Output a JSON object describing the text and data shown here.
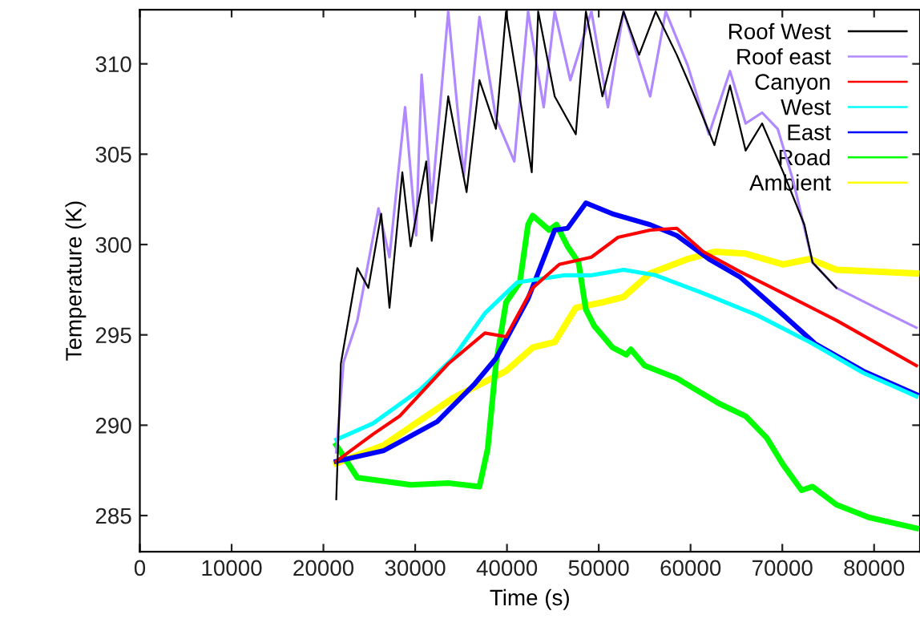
{
  "chart_data": {
    "type": "line",
    "xlabel": "Time (s)",
    "ylabel": "Temperature (K)",
    "xlim": [
      0,
      85000
    ],
    "xticks": [
      0,
      10000,
      20000,
      30000,
      40000,
      50000,
      60000,
      70000,
      80000
    ],
    "ylim": [
      283,
      313
    ],
    "yticks": [
      285,
      290,
      295,
      300,
      305,
      310
    ],
    "grid": false,
    "legend": "top right",
    "line_style": "solid",
    "marker": "none",
    "series": [
      {
        "name": "Roof West",
        "color": "#000000",
        "x": [
          21400,
          21900,
          23700,
          24900,
          26300,
          27200,
          28600,
          29500,
          31200,
          31800,
          33600,
          35600,
          37000,
          38800,
          39900,
          41100,
          42700,
          43400,
          45200,
          47500,
          48600,
          50400,
          52700,
          54400,
          56200,
          58500,
          60200,
          62600,
          64300,
          66000,
          67800,
          70100,
          72400,
          73300,
          75900
        ],
        "values": [
          285.9,
          293.4,
          298.7,
          297.6,
          301.7,
          296.5,
          304.0,
          299.9,
          304.6,
          300.2,
          308.2,
          302.9,
          309.1,
          306.4,
          312.9,
          309.1,
          304.0,
          312.9,
          308.2,
          306.1,
          312.9,
          308.2,
          312.9,
          310.5,
          312.9,
          310.5,
          308.5,
          305.5,
          308.8,
          305.2,
          306.7,
          304.0,
          301.1,
          299.0,
          297.6
        ]
      },
      {
        "name": "Roof east",
        "color": "#b088ff",
        "x": [
          21400,
          22200,
          23700,
          26000,
          27200,
          28900,
          30100,
          30700,
          31800,
          33600,
          35300,
          37000,
          38800,
          40800,
          42300,
          44000,
          45200,
          46900,
          49200,
          51000,
          52700,
          55600,
          57300,
          59700,
          62000,
          64300,
          66000,
          67800,
          69500,
          71200,
          73300,
          75900,
          80200,
          84600
        ],
        "values": [
          288.5,
          293.5,
          295.8,
          302.0,
          299.3,
          307.6,
          300.5,
          309.4,
          302.3,
          312.9,
          303.8,
          312.6,
          307.0,
          304.6,
          312.9,
          307.6,
          312.9,
          309.1,
          312.9,
          307.6,
          312.9,
          308.2,
          312.9,
          309.9,
          306.1,
          309.6,
          306.7,
          307.3,
          306.4,
          303.5,
          299.0,
          297.6,
          296.5,
          295.4
        ]
      },
      {
        "name": "Canyon",
        "color": "#ff0000",
        "x": [
          21400,
          25400,
          28300,
          33600,
          37600,
          39900,
          42800,
          45700,
          49200,
          52100,
          55600,
          58500,
          61400,
          65400,
          70100,
          75900,
          84600
        ],
        "values": [
          288.0,
          289.5,
          290.5,
          293.4,
          295.1,
          294.9,
          297.6,
          298.9,
          299.3,
          300.4,
          300.8,
          300.9,
          299.6,
          298.5,
          297.3,
          295.8,
          293.3
        ]
      },
      {
        "name": "West",
        "color": "#00ffff",
        "x": [
          21400,
          25400,
          30600,
          34100,
          37600,
          41100,
          46300,
          49200,
          52700,
          56200,
          61400,
          67200,
          73000,
          78800,
          84600
        ],
        "values": [
          289.2,
          290.1,
          292.0,
          293.7,
          296.2,
          297.9,
          298.3,
          298.3,
          298.6,
          298.3,
          297.3,
          296.1,
          294.6,
          292.9,
          291.6
        ]
      },
      {
        "name": "East",
        "color": "#0000ff",
        "x": [
          21400,
          26600,
          32400,
          36500,
          38800,
          42300,
          45200,
          46600,
          48600,
          51500,
          55600,
          58500,
          62000,
          65400,
          70100,
          73600,
          78800,
          84600
        ],
        "values": [
          288.0,
          288.6,
          290.2,
          292.3,
          293.7,
          297.0,
          300.8,
          300.9,
          302.3,
          301.7,
          301.1,
          300.5,
          299.2,
          298.2,
          296.1,
          294.5,
          293.0,
          291.7
        ]
      },
      {
        "name": "Road",
        "color": "#00ff00",
        "x": [
          21400,
          23700,
          29500,
          33600,
          37000,
          37900,
          38800,
          39900,
          41400,
          42300,
          42800,
          44600,
          45400,
          46600,
          47800,
          48600,
          49500,
          51500,
          53000,
          53500,
          55000,
          58500,
          63100,
          66000,
          68300,
          70100,
          72100,
          73300,
          75900,
          79400,
          84600
        ],
        "values": [
          288.9,
          287.1,
          286.7,
          286.8,
          286.6,
          288.7,
          293.4,
          296.8,
          297.9,
          301.1,
          301.6,
          300.8,
          301.1,
          299.9,
          299.0,
          296.4,
          295.5,
          294.3,
          293.9,
          294.2,
          293.3,
          292.6,
          291.2,
          290.5,
          289.3,
          287.8,
          286.4,
          286.6,
          285.6,
          284.9,
          284.3
        ]
      },
      {
        "name": "Ambient",
        "color": "#ffff00",
        "x": [
          21400,
          26600,
          34100,
          39900,
          42800,
          45200,
          47500,
          50400,
          52700,
          55600,
          59700,
          62600,
          66000,
          70100,
          73000,
          75900,
          84600
        ],
        "values": [
          287.9,
          288.9,
          291.5,
          293.0,
          294.3,
          294.6,
          296.5,
          296.8,
          297.1,
          298.4,
          299.2,
          299.6,
          299.5,
          298.9,
          299.2,
          298.6,
          298.4
        ]
      }
    ]
  }
}
